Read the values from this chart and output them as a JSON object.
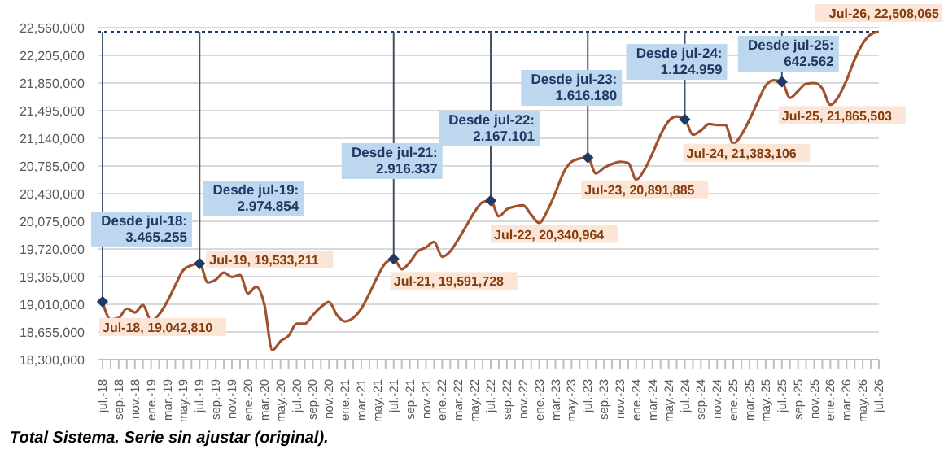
{
  "chart_data": {
    "type": "line",
    "categories": [
      "jul.-18",
      null,
      "sep.-18",
      null,
      "nov.-18",
      null,
      "ene.-19",
      null,
      "mar.-19",
      null,
      "may.-19",
      null,
      "jul.-19",
      null,
      "sep.-19",
      null,
      "nov.-19",
      null,
      "ene.-20",
      null,
      "mar.-20",
      null,
      "may.-20",
      null,
      "jul.-20",
      null,
      "sep.-20",
      null,
      "nov.-20",
      null,
      "ene.-21",
      null,
      "mar.-21",
      null,
      "may.-21",
      null,
      "jul.-21",
      null,
      "sep.-21",
      null,
      "nov.-21",
      null,
      "ene.-22",
      null,
      "mar.-22",
      null,
      "may.-22",
      null,
      "jul.-22",
      null,
      "sep.-22",
      null,
      "nov.-22",
      null,
      "ene.-23",
      null,
      "mar.-23",
      null,
      "may.-23",
      null,
      "jul.-23",
      null,
      "sep.-23",
      null,
      "nov.-23",
      null,
      "ene.-24",
      null,
      "mar.-24",
      null,
      "may.-24",
      null,
      "jul.-24",
      null,
      "sep.-24",
      null,
      "nov.-24",
      null,
      "ene.-25",
      null,
      "mar.-25",
      null,
      "may.-25",
      null,
      "jul.-25",
      null,
      "sep.-25",
      null,
      "nov.-25",
      null,
      "ene.-26",
      null,
      "mar.-26",
      null,
      "may.-26",
      null,
      "jul.-26"
    ],
    "series": [
      {
        "color": "#a0522d",
        "values": [
          19042810,
          18815000,
          18835000,
          18955000,
          18905000,
          19000000,
          18800000,
          18880000,
          19045000,
          19255000,
          19450000,
          19510000,
          19533211,
          19290000,
          19325000,
          19415000,
          19360000,
          19385000,
          19150000,
          19235000,
          19010000,
          18420000,
          18535000,
          18605000,
          18760000,
          18760000,
          18870000,
          18975000,
          19040000,
          18870000,
          18790000,
          18835000,
          18955000,
          19150000,
          19365000,
          19540000,
          19591728,
          19460000,
          19550000,
          19690000,
          19740000,
          19810000,
          19620000,
          19690000,
          19845000,
          20020000,
          20195000,
          20320000,
          20340964,
          20140000,
          20230000,
          20265000,
          20280000,
          20160000,
          20055000,
          20210000,
          20440000,
          20700000,
          20840000,
          20880000,
          20891885,
          20690000,
          20760000,
          20810000,
          20840000,
          20825000,
          20610000,
          20735000,
          20945000,
          21185000,
          21360000,
          21420000,
          21383106,
          21185000,
          21240000,
          21325000,
          21310000,
          21310000,
          21070000,
          21185000,
          21380000,
          21605000,
          21815000,
          21885000,
          21865503,
          21660000,
          21745000,
          21840000,
          21850000,
          21780000,
          21570000,
          21675000,
          21885000,
          22150000,
          22355000,
          22475000,
          22508065
        ],
        "errors": [
          [
            19042810,
            22508065
          ],
          null,
          null,
          null,
          null,
          null,
          null,
          null,
          null,
          null,
          null,
          null,
          [
            19533211,
            22508065
          ],
          null,
          null,
          null,
          null,
          null,
          null,
          null,
          null,
          null,
          null,
          null,
          null,
          null,
          null,
          null,
          null,
          null,
          null,
          null,
          null,
          null,
          null,
          null,
          [
            19591728,
            22508065
          ],
          null,
          null,
          null,
          null,
          null,
          null,
          null,
          null,
          null,
          null,
          null,
          [
            20340964,
            22508065
          ],
          null,
          null,
          null,
          null,
          null,
          null,
          null,
          null,
          null,
          null,
          null,
          [
            20891885,
            22508065
          ],
          null,
          null,
          null,
          null,
          null,
          null,
          null,
          null,
          null,
          null,
          null,
          [
            21383106,
            22508065
          ],
          null,
          null,
          null,
          null,
          null,
          null,
          null,
          null,
          null,
          null,
          null,
          [
            21865503,
            22508065
          ],
          null,
          null,
          null,
          null,
          null,
          null,
          null,
          null,
          null,
          null,
          null,
          null
        ]
      }
    ],
    "ylim": [
      18300000,
      22560000
    ],
    "yticks": [
      {
        "value": 18300000,
        "label": "18,300,000"
      },
      {
        "value": 18655000,
        "label": "18,655,000"
      },
      {
        "value": 19010000,
        "label": "19,010,000"
      },
      {
        "value": 19365000,
        "label": "19,365,000"
      },
      {
        "value": 19720000,
        "label": "19,720,000"
      },
      {
        "value": 20075000,
        "label": "20,075,000"
      },
      {
        "value": 20430000,
        "label": "20,430,000"
      },
      {
        "value": 20785000,
        "label": "20,785,000"
      },
      {
        "value": 21140000,
        "label": "21,140,000"
      },
      {
        "value": 21495000,
        "label": "21,495,000"
      },
      {
        "value": 21850000,
        "label": "21,850,000"
      },
      {
        "value": 22205000,
        "label": "22,205,000"
      },
      {
        "value": 22560000,
        "label": "22,560,000"
      }
    ],
    "grid": "y",
    "marker": "none",
    "line_style": "solid",
    "ref_lines": [
      {
        "axis": "y",
        "value": 22508065,
        "color": "#1f3864",
        "line_style": "dotted"
      }
    ],
    "annotations": [
      {
        "text": "Jul-18, 19,042,810",
        "x": "jul.-18",
        "y": 19042810
      },
      {
        "text": "Jul-19, 19,533,211",
        "x": "jul.-19",
        "y": 19533211
      },
      {
        "text": "Jul-21, 19,591,728",
        "x": "jul.-21",
        "y": 19591728
      },
      {
        "text": "Jul-22, 20,340,964",
        "x": "jul.-22",
        "y": 20340964
      },
      {
        "text": "Jul-23, 20,891,885",
        "x": "jul.-23",
        "y": 20891885
      },
      {
        "text": "Jul-24, 21,383,106",
        "x": "jul.-24",
        "y": 21383106
      },
      {
        "text": "Jul-25, 21,865,503",
        "x": "jul.-25",
        "y": 21865503
      },
      {
        "text": "Jul-26, 22,508,065",
        "x": "jul.-26",
        "y": 22508065
      },
      "Desde jul-18:\n3.465.255",
      "Desde jul-19:\n2.974.854",
      "Desde jul-21:\n2.916.337",
      "Desde jul-22:\n2.167.101",
      "Desde jul-23:\n1.616.180",
      "Desde jul-24:\n1.124.959",
      "Desde jul-25:\n642.562",
      "Total Sistema. Serie sin ajustar (original)."
    ]
  }
}
